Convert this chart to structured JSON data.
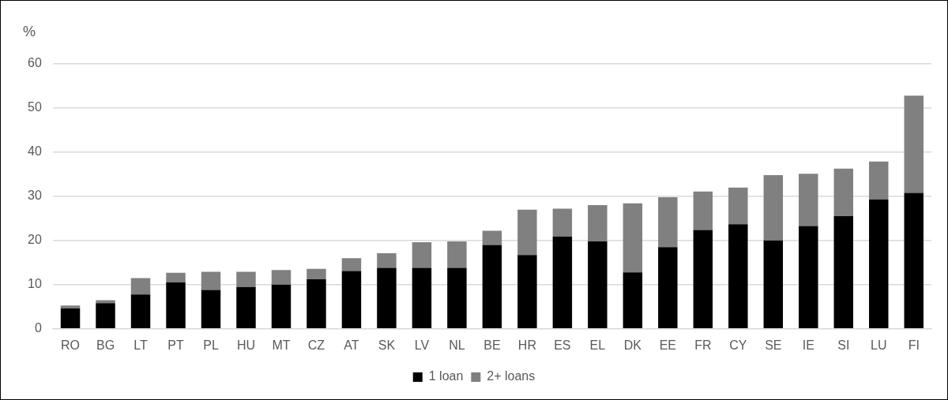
{
  "chart_data": {
    "type": "bar",
    "stacked": true,
    "ylabel": "%",
    "categories": [
      "RO",
      "BG",
      "LT",
      "PT",
      "PL",
      "HU",
      "MT",
      "CZ",
      "AT",
      "SK",
      "LV",
      "NL",
      "BE",
      "HR",
      "ES",
      "EL",
      "DK",
      "EE",
      "FR",
      "CY",
      "SE",
      "IE",
      "SI",
      "LU",
      "FI"
    ],
    "series": [
      {
        "name": "1 loan",
        "color": "#000000",
        "values": [
          4.6,
          5.8,
          7.8,
          10.5,
          8.8,
          9.5,
          10.0,
          11.2,
          13.1,
          13.8,
          13.8,
          13.8,
          19.0,
          16.7,
          20.9,
          19.8,
          12.8,
          18.5,
          22.4,
          23.7,
          20.0,
          23.3,
          25.5,
          29.3,
          30.8
        ]
      },
      {
        "name": "2+ loans",
        "color": "#808080",
        "values": [
          0.7,
          0.7,
          3.7,
          2.2,
          4.1,
          3.4,
          3.3,
          2.4,
          2.9,
          3.3,
          5.8,
          6.0,
          3.2,
          10.3,
          6.3,
          8.2,
          15.6,
          11.3,
          8.7,
          8.3,
          14.8,
          11.8,
          10.8,
          8.6,
          22.0
        ]
      }
    ],
    "ylim": [
      0,
      60
    ],
    "yticks": [
      0,
      10,
      20,
      30,
      40,
      50,
      60
    ],
    "grid": "y",
    "legend": "bottom"
  }
}
